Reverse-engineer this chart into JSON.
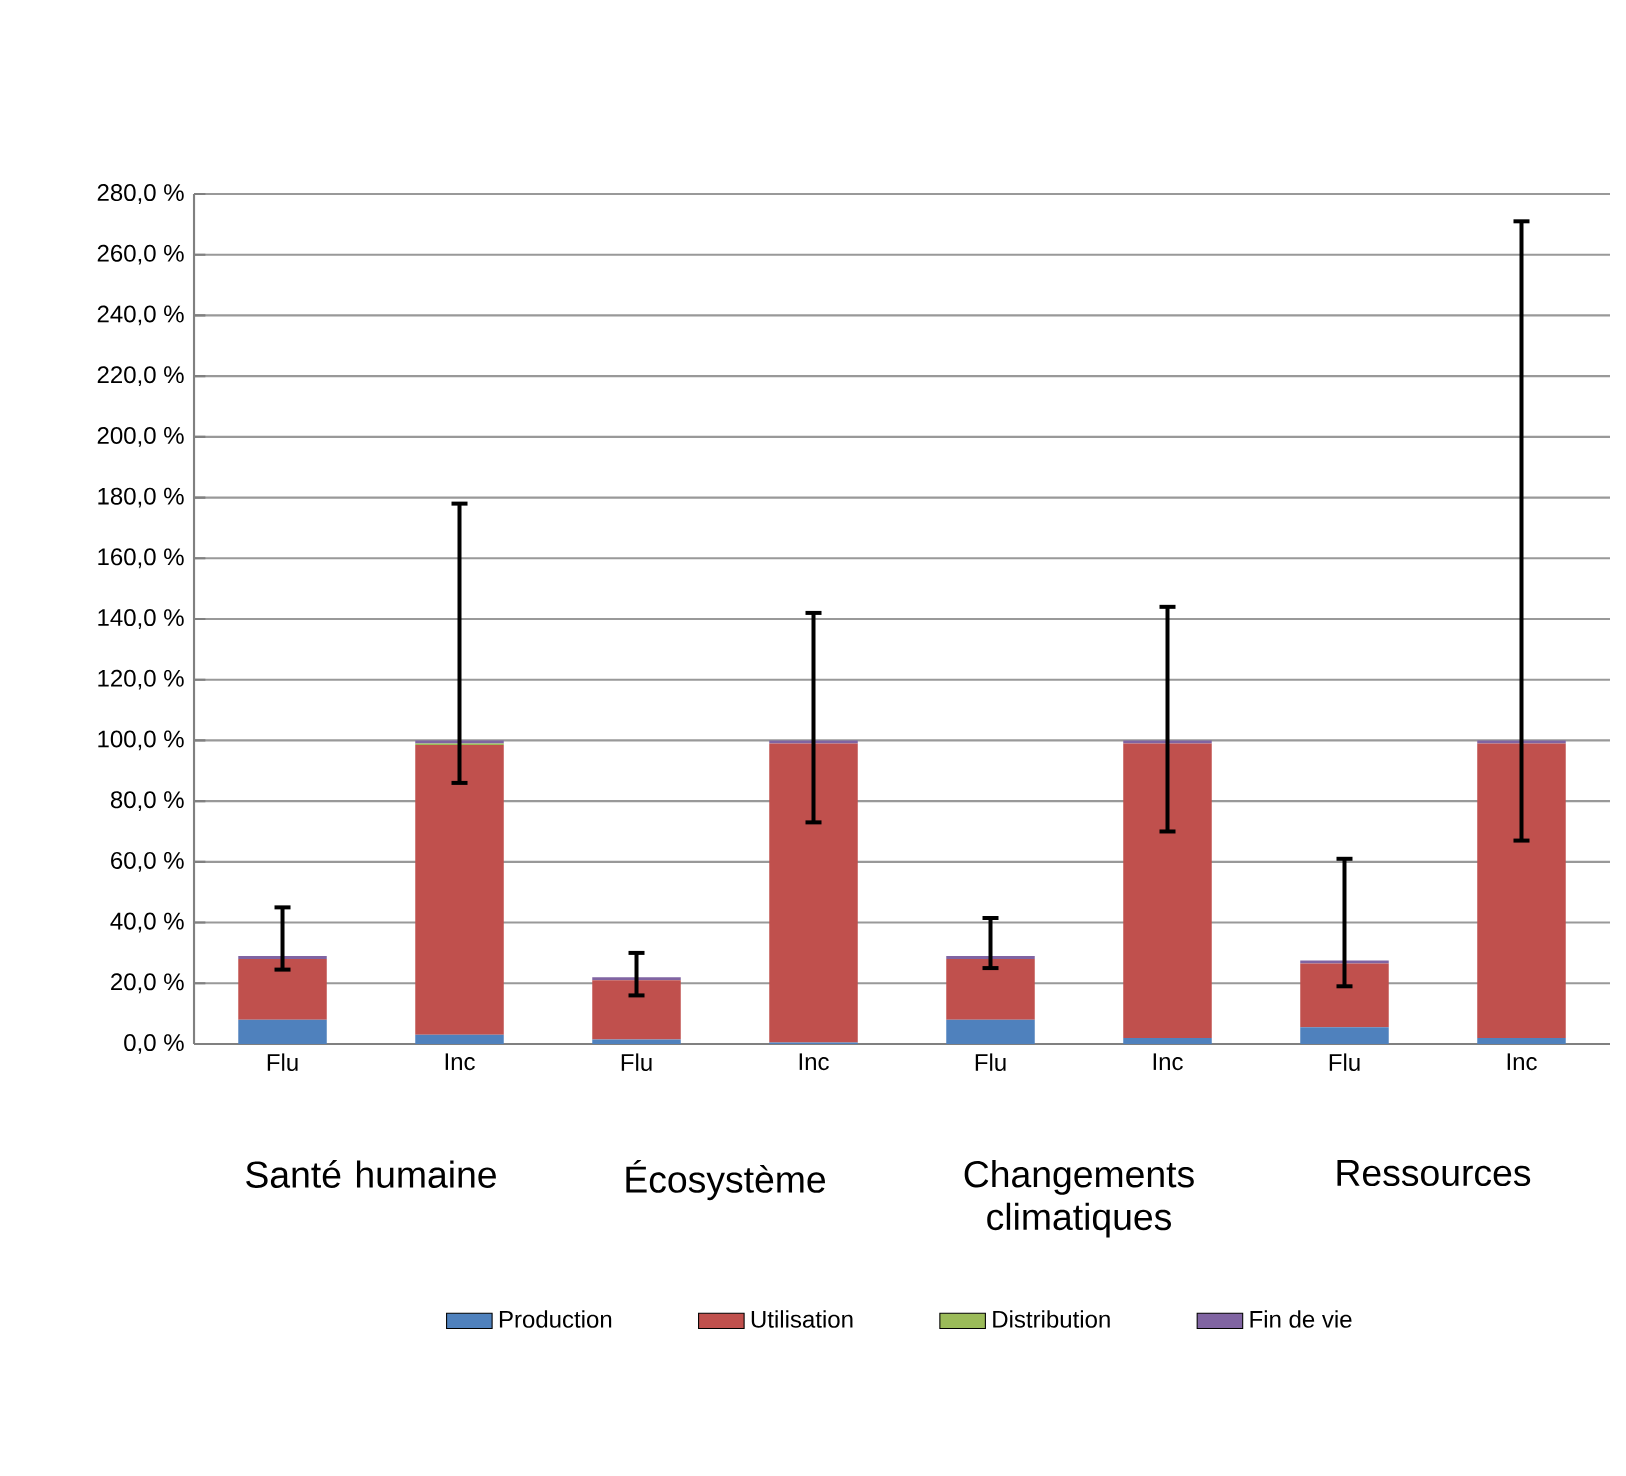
{
  "chart_data": {
    "type": "bar",
    "stacked": true,
    "categories": [
      "Flu",
      "Inc",
      "Flu",
      "Inc",
      "Flu",
      "Inc",
      "Flu",
      "Inc"
    ],
    "series": [
      {
        "name": "Production",
        "color": "#4f81bd",
        "values": [
          8,
          3,
          1.5,
          0.5,
          8,
          2,
          5.5,
          2
        ]
      },
      {
        "name": "Utilisation",
        "color": "#c0504d",
        "values": [
          20,
          95.5,
          19.5,
          98.5,
          20,
          97,
          21,
          97
        ]
      },
      {
        "name": "Distribution",
        "color": "#9bbb59",
        "values": [
          0,
          0.5,
          0,
          0,
          0,
          0,
          0,
          0
        ]
      },
      {
        "name": "Fin de vie",
        "color": "#8064a2",
        "values": [
          1,
          1,
          1,
          1,
          1,
          1,
          1,
          1
        ],
        "errors": [
          [
            24.5,
            45
          ],
          [
            86,
            178
          ],
          [
            16,
            30
          ],
          [
            73,
            142
          ],
          [
            25,
            41.5
          ],
          [
            70,
            144
          ],
          [
            19,
            61
          ],
          [
            67,
            271
          ]
        ]
      }
    ],
    "annotations": [
      "Santé humaine",
      "Écosystème",
      "Changements climatiques",
      "Ressources"
    ],
    "ylim": [
      0,
      280
    ],
    "yticks": [
      {
        "value": 0,
        "label": "0,0 %"
      },
      {
        "value": 20,
        "label": "20,0 %"
      },
      {
        "value": 40,
        "label": "40,0 %"
      },
      {
        "value": 60,
        "label": "60,0 %"
      },
      {
        "value": 80,
        "label": "80,0 %"
      },
      {
        "value": 100,
        "label": "100,0 %"
      },
      {
        "value": 120,
        "label": "120,0 %"
      },
      {
        "value": 140,
        "label": "140,0 %"
      },
      {
        "value": 160,
        "label": "160,0 %"
      },
      {
        "value": 180,
        "label": "180,0 %"
      },
      {
        "value": 200,
        "label": "200,0 %"
      },
      {
        "value": 220,
        "label": "220,0 %"
      },
      {
        "value": 240,
        "label": "240,0 %"
      },
      {
        "value": 260,
        "label": "260,0 %"
      },
      {
        "value": 280,
        "label": "280,0 %"
      }
    ],
    "grid": "y",
    "legend": "bottom"
  }
}
